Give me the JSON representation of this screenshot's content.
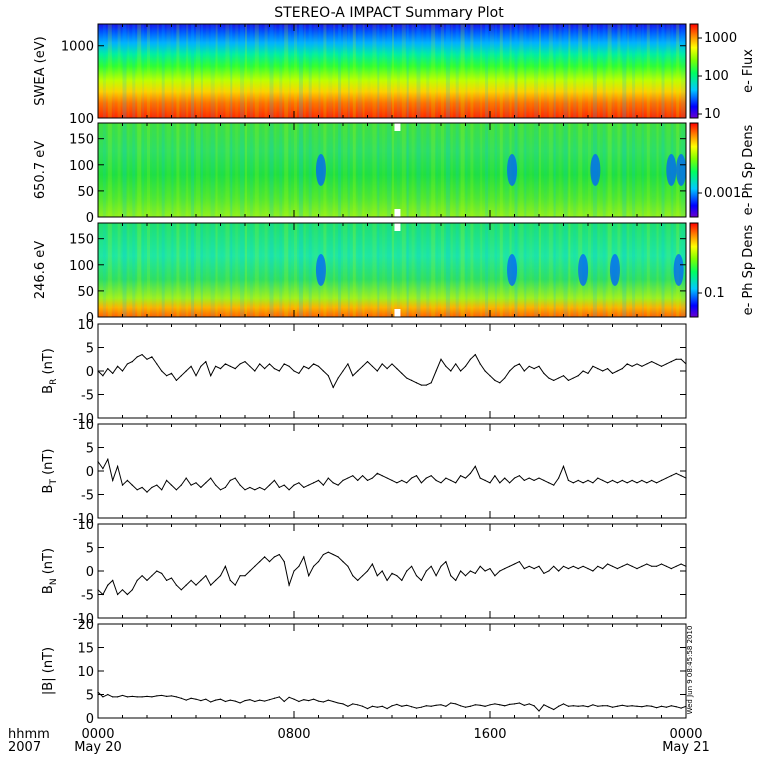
{
  "title": "STEREO-A IMPACT Summary Plot",
  "footer": {
    "left_line1": "hhmm",
    "left_line2": "2007",
    "x_ticks": [
      "0000",
      "0800",
      "1600",
      "0000"
    ],
    "x_dates": [
      "May 20",
      "May 21"
    ],
    "timestamp": "Wed Jun  9 08:45:58 2010"
  },
  "colors": {
    "spectrogram_low": "#0000ff",
    "spectrogram_mid": "#00ff00",
    "spectrogram_high": "#ff0000",
    "line": "#000000",
    "background": "#ffffff"
  },
  "chart_data": [
    {
      "type": "heatmap",
      "ylabel": "SWEA (eV)",
      "yscale": "log",
      "ylim": [
        100,
        2000
      ],
      "yticks": [
        "100",
        "1000"
      ],
      "colorbar": {
        "label": "e- Flux",
        "scale": "log",
        "ticks": [
          "10",
          "100",
          "1000"
        ],
        "range": [
          6,
          2500
        ]
      },
      "x_hours": [
        0,
        24
      ],
      "description_levels": {
        "low_energy_color": "red-orange",
        "high_energy_color": "blue"
      }
    },
    {
      "type": "heatmap",
      "ylabel": "650.7 eV",
      "ylim": [
        0,
        180
      ],
      "yticks": [
        "0",
        "50",
        "100",
        "150"
      ],
      "colorbar": {
        "label": "e- Ph Sp Dens",
        "scale": "log",
        "ticks": [
          "0.001"
        ]
      },
      "x_hours": [
        0,
        24
      ],
      "depletions_hours": [
        9.1,
        16.9,
        20.3,
        23.4,
        23.8
      ]
    },
    {
      "type": "heatmap",
      "ylabel": "246.6 eV",
      "ylim": [
        0,
        180
      ],
      "yticks": [
        "0",
        "50",
        "100",
        "150"
      ],
      "colorbar": {
        "label": "e- Ph Sp Dens",
        "scale": "log",
        "ticks": [
          "0.1"
        ]
      },
      "x_hours": [
        0,
        24
      ],
      "depletions_hours": [
        9.1,
        16.9,
        19.8,
        21.1,
        23.7
      ]
    },
    {
      "type": "line",
      "ylabel": "B_R (nT)",
      "ylabel_main": "B",
      "ylabel_sub": "R",
      "ylabel_unit": "(nT)",
      "ylim": [
        -10,
        10
      ],
      "yticks": [
        "-10",
        "-5",
        "0",
        "5",
        "10"
      ],
      "x": [
        0,
        0.2,
        0.4,
        0.6,
        0.8,
        1.0,
        1.2,
        1.4,
        1.6,
        1.8,
        2.0,
        2.2,
        2.4,
        2.6,
        2.8,
        3.0,
        3.2,
        3.4,
        3.6,
        3.8,
        4.0,
        4.2,
        4.4,
        4.6,
        4.8,
        5.0,
        5.2,
        5.4,
        5.6,
        5.8,
        6.0,
        6.2,
        6.4,
        6.6,
        6.8,
        7.0,
        7.2,
        7.4,
        7.6,
        7.8,
        8.0,
        8.2,
        8.4,
        8.6,
        8.8,
        9.0,
        9.2,
        9.4,
        9.6,
        9.8,
        10.0,
        10.2,
        10.4,
        10.6,
        10.8,
        11.0,
        11.2,
        11.4,
        11.6,
        11.8,
        12.0,
        12.2,
        12.4,
        12.6,
        12.8,
        13.0,
        13.2,
        13.4,
        13.6,
        13.8,
        14.0,
        14.2,
        14.4,
        14.6,
        14.8,
        15.0,
        15.2,
        15.4,
        15.6,
        15.8,
        16.0,
        16.2,
        16.4,
        16.6,
        16.8,
        17.0,
        17.2,
        17.4,
        17.6,
        17.8,
        18.0,
        18.2,
        18.4,
        18.6,
        18.8,
        19.0,
        19.2,
        19.4,
        19.6,
        19.8,
        20.0,
        20.2,
        20.4,
        20.6,
        20.8,
        21.0,
        21.2,
        21.4,
        21.6,
        21.8,
        22.0,
        22.2,
        22.4,
        22.6,
        22.8,
        23.0,
        23.2,
        23.4,
        23.6,
        23.8,
        24.0
      ],
      "values": [
        0,
        -1,
        0.5,
        -0.5,
        1,
        0,
        1.5,
        2,
        3,
        3.5,
        2.5,
        3,
        1.5,
        0,
        -1,
        -0.5,
        -2,
        -1,
        0,
        1,
        -1,
        1,
        2,
        -1,
        1,
        0.5,
        1.5,
        1,
        0.5,
        1.5,
        2,
        1,
        0,
        1.5,
        0.5,
        1.5,
        0.5,
        0,
        1.5,
        1,
        0,
        -0.5,
        1,
        0.5,
        1.5,
        1,
        0,
        -1,
        -3.5,
        -1.5,
        0,
        1.5,
        -1,
        0,
        1,
        2,
        1,
        0,
        1.5,
        0.5,
        1.5,
        0.5,
        -0.5,
        -1.5,
        -2,
        -2.5,
        -3,
        -3,
        -2.5,
        0,
        2.5,
        1,
        0,
        1.5,
        0,
        1,
        2.5,
        3.5,
        1.5,
        0,
        -1,
        -2,
        -2.5,
        -1.5,
        0,
        1,
        1.5,
        0,
        1,
        0.5,
        1,
        -0.5,
        -1.5,
        -2,
        -1.5,
        -1,
        -2,
        -1.5,
        -1,
        0,
        -0.5,
        1,
        0.5,
        0,
        0.5,
        -0.5,
        0,
        0.5,
        1.5,
        1,
        1.5,
        1,
        1.5,
        2,
        1.5,
        1,
        1.5,
        2,
        2.5,
        2.5,
        1.5
      ]
    },
    {
      "type": "line",
      "ylabel": "B_T (nT)",
      "ylabel_main": "B",
      "ylabel_sub": "T",
      "ylabel_unit": "(nT)",
      "ylim": [
        -10,
        10
      ],
      "yticks": [
        "-10",
        "-5",
        "0",
        "5",
        "10"
      ],
      "x": [
        0,
        0.2,
        0.4,
        0.6,
        0.8,
        1.0,
        1.2,
        1.4,
        1.6,
        1.8,
        2.0,
        2.2,
        2.4,
        2.6,
        2.8,
        3.0,
        3.2,
        3.4,
        3.6,
        3.8,
        4.0,
        4.2,
        4.4,
        4.6,
        4.8,
        5.0,
        5.2,
        5.4,
        5.6,
        5.8,
        6.0,
        6.2,
        6.4,
        6.6,
        6.8,
        7.0,
        7.2,
        7.4,
        7.6,
        7.8,
        8.0,
        8.2,
        8.4,
        8.6,
        8.8,
        9.0,
        9.2,
        9.4,
        9.6,
        9.8,
        10.0,
        10.2,
        10.4,
        10.6,
        10.8,
        11.0,
        11.2,
        11.4,
        11.6,
        11.8,
        12.0,
        12.2,
        12.4,
        12.6,
        12.8,
        13.0,
        13.2,
        13.4,
        13.6,
        13.8,
        14.0,
        14.2,
        14.4,
        14.6,
        14.8,
        15.0,
        15.2,
        15.4,
        15.6,
        15.8,
        16.0,
        16.2,
        16.4,
        16.6,
        16.8,
        17.0,
        17.2,
        17.4,
        17.6,
        17.8,
        18.0,
        18.2,
        18.4,
        18.6,
        18.8,
        19.0,
        19.2,
        19.4,
        19.6,
        19.8,
        20.0,
        20.2,
        20.4,
        20.6,
        20.8,
        21.0,
        21.2,
        21.4,
        21.6,
        21.8,
        22.0,
        22.2,
        22.4,
        22.6,
        22.8,
        23.0,
        23.2,
        23.4,
        23.6,
        23.8,
        24.0
      ],
      "values": [
        2,
        0.5,
        2.5,
        -2,
        1,
        -3,
        -2,
        -3,
        -4,
        -3.5,
        -4.5,
        -3.5,
        -3,
        -4,
        -2,
        -3,
        -4,
        -3,
        -1.5,
        -3,
        -2.5,
        -3.5,
        -2.5,
        -1.5,
        -3,
        -4,
        -3.5,
        -2,
        -1.5,
        -3,
        -4,
        -3.5,
        -4,
        -3.5,
        -4,
        -3,
        -2,
        -3.5,
        -3,
        -4,
        -3,
        -2.5,
        -3.5,
        -3,
        -2.5,
        -2,
        -3,
        -1.5,
        -2.5,
        -3,
        -2,
        -1.5,
        -1,
        -2,
        -1,
        -2,
        -1.5,
        -0.5,
        -1,
        -1.5,
        -2,
        -2.5,
        -2,
        -2.5,
        -1.5,
        -1,
        -2.5,
        -1.5,
        -1,
        -2,
        -2.5,
        -1.5,
        -2,
        -2.5,
        -1,
        -1.5,
        -0.5,
        1,
        -1.5,
        -2,
        -2.5,
        -1,
        -2.5,
        -1.5,
        -2.5,
        -1.5,
        -1,
        -2,
        -1.5,
        -2,
        -1.5,
        -2,
        -2.5,
        -3,
        -1.5,
        1,
        -2,
        -2.5,
        -2,
        -2.5,
        -2,
        -2.5,
        -1.5,
        -2,
        -2.5,
        -2,
        -2.5,
        -2,
        -2.5,
        -2,
        -2.5,
        -2,
        -2.5,
        -2,
        -2.5,
        -2,
        -1.5,
        -1,
        -0.5,
        -1,
        -1.5
      ]
    },
    {
      "type": "line",
      "ylabel": "B_N (nT)",
      "ylabel_main": "B",
      "ylabel_sub": "N",
      "ylabel_unit": "(nT)",
      "ylim": [
        -10,
        10
      ],
      "yticks": [
        "-10",
        "-5",
        "0",
        "5",
        "10"
      ],
      "x": [
        0,
        0.2,
        0.4,
        0.6,
        0.8,
        1.0,
        1.2,
        1.4,
        1.6,
        1.8,
        2.0,
        2.2,
        2.4,
        2.6,
        2.8,
        3.0,
        3.2,
        3.4,
        3.6,
        3.8,
        4.0,
        4.2,
        4.4,
        4.6,
        4.8,
        5.0,
        5.2,
        5.4,
        5.6,
        5.8,
        6.0,
        6.2,
        6.4,
        6.6,
        6.8,
        7.0,
        7.2,
        7.4,
        7.6,
        7.8,
        8.0,
        8.2,
        8.4,
        8.6,
        8.8,
        9.0,
        9.2,
        9.4,
        9.6,
        9.8,
        10.0,
        10.2,
        10.4,
        10.6,
        10.8,
        11.0,
        11.2,
        11.4,
        11.6,
        11.8,
        12.0,
        12.2,
        12.4,
        12.6,
        12.8,
        13.0,
        13.2,
        13.4,
        13.6,
        13.8,
        14.0,
        14.2,
        14.4,
        14.6,
        14.8,
        15.0,
        15.2,
        15.4,
        15.6,
        15.8,
        16.0,
        16.2,
        16.4,
        16.6,
        16.8,
        17.0,
        17.2,
        17.4,
        17.6,
        17.8,
        18.0,
        18.2,
        18.4,
        18.6,
        18.8,
        19.0,
        19.2,
        19.4,
        19.6,
        19.8,
        20.0,
        20.2,
        20.4,
        20.6,
        20.8,
        21.0,
        21.2,
        21.4,
        21.6,
        21.8,
        22.0,
        22.2,
        22.4,
        22.6,
        22.8,
        23.0,
        23.2,
        23.4,
        23.6,
        23.8,
        24.0
      ],
      "values": [
        -4,
        -5,
        -3,
        -2,
        -5,
        -4,
        -5,
        -4,
        -2,
        -1,
        -2,
        -1,
        0,
        -0.5,
        -2,
        -1.5,
        -3,
        -4,
        -3,
        -2,
        -3,
        -2,
        -1,
        -3,
        -2,
        -1,
        1,
        -2,
        -3,
        -1,
        -1,
        0,
        1,
        2,
        3,
        2,
        3,
        3.5,
        2,
        -3,
        0,
        1,
        3,
        -1,
        1,
        2,
        3.5,
        4,
        3.5,
        3,
        2,
        1,
        -1,
        -2,
        -1,
        0,
        1.5,
        -1,
        0,
        -2,
        -0.5,
        -1,
        -2,
        0,
        1,
        -1,
        -2,
        0,
        1,
        -1,
        1,
        2,
        -1,
        -2,
        0,
        -1,
        0,
        -0.5,
        1,
        0,
        0.5,
        -1,
        0,
        0.5,
        1,
        1.5,
        2,
        0.5,
        1,
        0.5,
        1,
        -0.5,
        0,
        1,
        0,
        1,
        0.5,
        1,
        0.5,
        1,
        0.5,
        0,
        1,
        0.5,
        1.5,
        1,
        0.5,
        1,
        1.5,
        1,
        0.5,
        1,
        1.5,
        1,
        1,
        1.5,
        1,
        0.5,
        1,
        1.5,
        1
      ]
    },
    {
      "type": "line",
      "ylabel": "|B| (nT)",
      "ylabel_main": "|B|",
      "ylabel_sub": "",
      "ylabel_unit": "(nT)",
      "ylim": [
        0,
        20
      ],
      "yticks": [
        "0",
        "5",
        "10",
        "15",
        "20"
      ],
      "x": [
        0,
        0.2,
        0.4,
        0.6,
        0.8,
        1.0,
        1.2,
        1.4,
        1.6,
        1.8,
        2.0,
        2.2,
        2.4,
        2.6,
        2.8,
        3.0,
        3.2,
        3.4,
        3.6,
        3.8,
        4.0,
        4.2,
        4.4,
        4.6,
        4.8,
        5.0,
        5.2,
        5.4,
        5.6,
        5.8,
        6.0,
        6.2,
        6.4,
        6.6,
        6.8,
        7.0,
        7.2,
        7.4,
        7.6,
        7.8,
        8.0,
        8.2,
        8.4,
        8.6,
        8.8,
        9.0,
        9.2,
        9.4,
        9.6,
        9.8,
        10.0,
        10.2,
        10.4,
        10.6,
        10.8,
        11.0,
        11.2,
        11.4,
        11.6,
        11.8,
        12.0,
        12.2,
        12.4,
        12.6,
        12.8,
        13.0,
        13.2,
        13.4,
        13.6,
        13.8,
        14.0,
        14.2,
        14.4,
        14.6,
        14.8,
        15.0,
        15.2,
        15.4,
        15.6,
        15.8,
        16.0,
        16.2,
        16.4,
        16.6,
        16.8,
        17.0,
        17.2,
        17.4,
        17.6,
        17.8,
        18.0,
        18.2,
        18.4,
        18.6,
        18.8,
        19.0,
        19.2,
        19.4,
        19.6,
        19.8,
        20.0,
        20.2,
        20.4,
        20.6,
        20.8,
        21.0,
        21.2,
        21.4,
        21.6,
        21.8,
        22.0,
        22.2,
        22.4,
        22.6,
        22.8,
        23.0,
        23.2,
        23.4,
        23.6,
        23.8,
        24.0
      ],
      "values": [
        5.5,
        4.5,
        5,
        4.5,
        4.5,
        4.8,
        4.5,
        4.6,
        4.5,
        4.5,
        4.6,
        4.5,
        4.7,
        4.8,
        4.6,
        4.7,
        4.5,
        4.2,
        3.8,
        4.2,
        4,
        3.7,
        4,
        3.4,
        3.8,
        4,
        3.5,
        3.8,
        3.6,
        3.2,
        3.7,
        3.9,
        3.5,
        3.8,
        3.6,
        3.9,
        4.2,
        4.5,
        3.5,
        4.4,
        4,
        3.5,
        3.9,
        3.7,
        4,
        3.6,
        3.4,
        3.8,
        3.5,
        3.2,
        3,
        2.5,
        3,
        2.8,
        2.5,
        2,
        2.5,
        2.3,
        2.5,
        2,
        2.6,
        2.9,
        2.5,
        2.7,
        2.4,
        2.1,
        2.3,
        2.6,
        2.5,
        2.7,
        2.8,
        2.5,
        3.2,
        3,
        2.6,
        2.3,
        2.5,
        2.8,
        2.7,
        2.5,
        2.8,
        3,
        2.8,
        2.6,
        2.9,
        3,
        3.2,
        2.7,
        3,
        2.6,
        1.5,
        2.8,
        2.3,
        1.8,
        2.5,
        3,
        2.5,
        2.6,
        2.5,
        2.6,
        2.4,
        2.8,
        2.5,
        2.6,
        2.6,
        2.3,
        2.5,
        2.7,
        2.5,
        2.6,
        2.5,
        2.4,
        2.6,
        2.5,
        2.2,
        2.5,
        2.3,
        2.6,
        2.4,
        2.1,
        2.5
      ]
    }
  ]
}
